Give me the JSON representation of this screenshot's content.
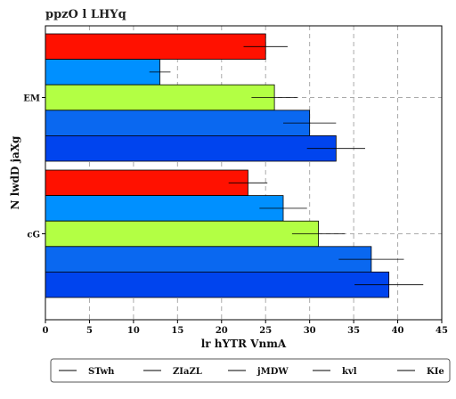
{
  "chart_data": {
    "type": "bar",
    "orientation": "horizontal",
    "title": "ppzO l LHYq",
    "xlabel": "lr hYTR VnmA",
    "ylabel": "N lwdD jaXg",
    "categories": [
      "EM",
      "cG"
    ],
    "xlim": [
      0,
      45
    ],
    "xticks": [
      0,
      5,
      10,
      15,
      20,
      25,
      30,
      35,
      40,
      45
    ],
    "grid": true,
    "legend_position": "bottom",
    "series": [
      {
        "name": "STwh",
        "color": "#ff1100",
        "values": [
          25,
          23
        ],
        "errors": [
          2.5,
          2.2
        ]
      },
      {
        "name": "ZIaZL",
        "color": "#0090ff",
        "values": [
          13,
          27
        ],
        "errors": [
          1.2,
          2.7
        ]
      },
      {
        "name": "jMDW",
        "color": "#b3ff44",
        "values": [
          26,
          31
        ],
        "errors": [
          2.6,
          3.0
        ]
      },
      {
        "name": "kvl",
        "color": "#0a68f0",
        "values": [
          30,
          37
        ],
        "errors": [
          3.0,
          3.7
        ]
      },
      {
        "name": "KIe",
        "color": "#0044ee",
        "values": [
          33,
          39
        ],
        "errors": [
          3.3,
          3.9
        ]
      }
    ]
  }
}
